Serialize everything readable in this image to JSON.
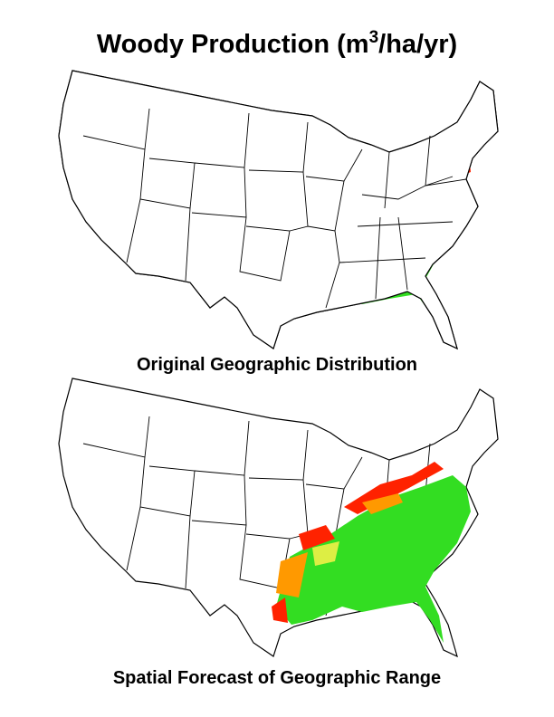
{
  "title": [
    "Woody Production (m",
    "3",
    "/ha/yr)"
  ],
  "maps": [
    {
      "caption": "Original Geographic Distribution"
    },
    {
      "caption": "Spatial Forecast of Geographic Range"
    }
  ]
}
